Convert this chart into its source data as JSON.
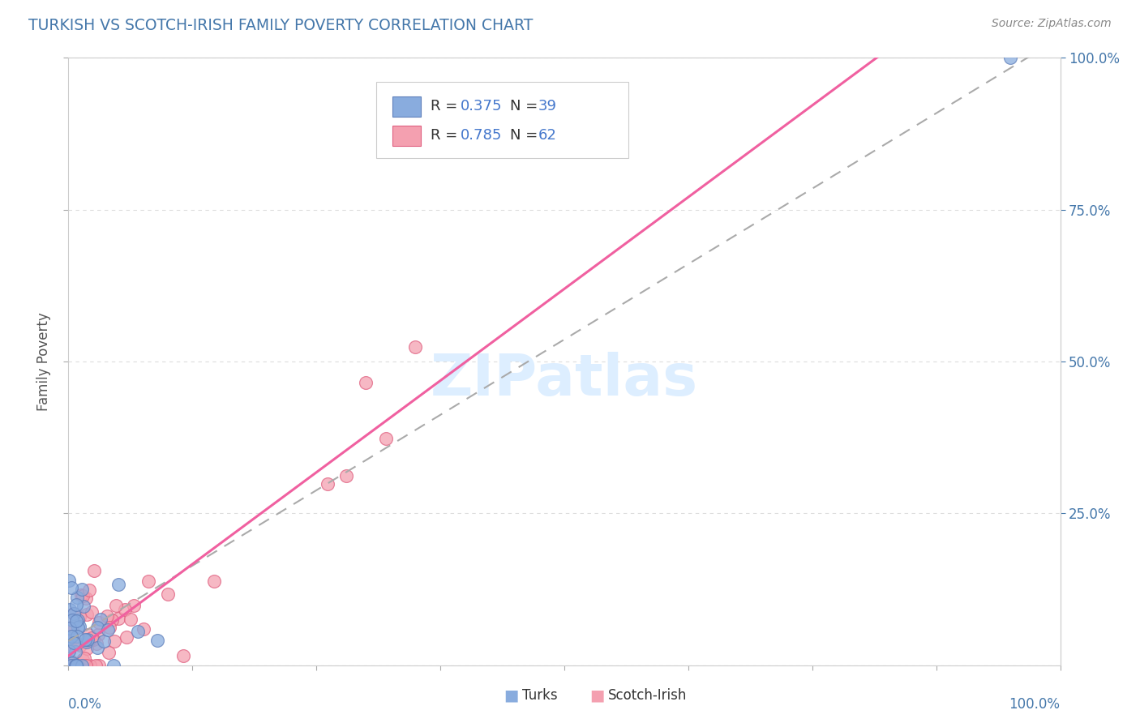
{
  "title": "TURKISH VS SCOTCH-IRISH FAMILY POVERTY CORRELATION CHART",
  "source": "Source: ZipAtlas.com",
  "ylabel": "Family Poverty",
  "R1": 0.375,
  "N1": 39,
  "R2": 0.785,
  "N2": 62,
  "blue_color": "#89ACDE",
  "blue_edge": "#6080BB",
  "pink_color": "#F4A0B0",
  "pink_edge": "#E06080",
  "reg_blue_color": "#AAAAAA",
  "reg_pink_color": "#F060A0",
  "title_color": "#4477AA",
  "source_color": "#888888",
  "axis_label_color": "#4477AA",
  "ylabel_color": "#555555",
  "legend_text_color": "#333333",
  "legend_value_color": "#4477CC",
  "grid_color": "#DDDDDD",
  "bg_color": "#FFFFFF",
  "watermark": "ZIPatlas",
  "watermark_color": "#DDEEFF",
  "right_yticks": [
    0.25,
    0.5,
    0.75,
    1.0
  ],
  "right_yticklabels": [
    "25.0%",
    "50.0%",
    "75.0%",
    "100.0%"
  ]
}
